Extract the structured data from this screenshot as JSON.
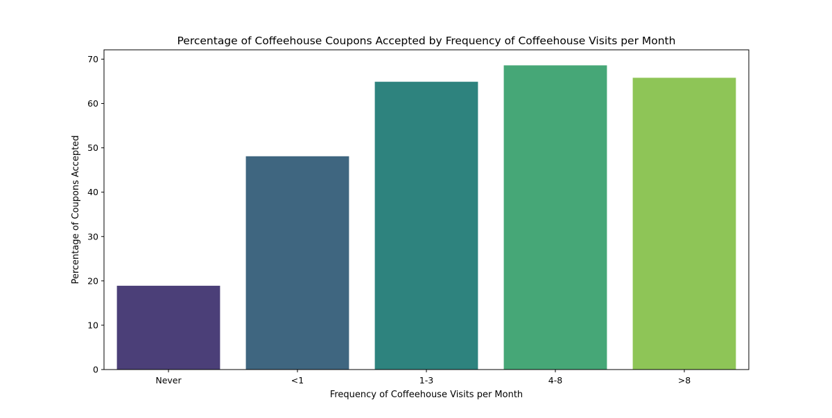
{
  "chart_data": {
    "type": "bar",
    "title": "Percentage of Coffeehouse Coupons Accepted by Frequency of Coffeehouse Visits per Month",
    "xlabel": "Frequency of Coffeehouse Visits per Month",
    "ylabel": "Percentage of Coupons Accepted",
    "categories": [
      "Never",
      "<1",
      "1-3",
      "4-8",
      ">8"
    ],
    "values": [
      18.9,
      48.1,
      64.9,
      68.6,
      65.8
    ],
    "colors": [
      "#4b3f78",
      "#3f6680",
      "#2e837e",
      "#46a777",
      "#8ec557"
    ],
    "ylim": [
      0,
      72.1
    ],
    "yticks": [
      0,
      10,
      20,
      30,
      40,
      50,
      60,
      70
    ],
    "grid": false,
    "legend": "none"
  }
}
